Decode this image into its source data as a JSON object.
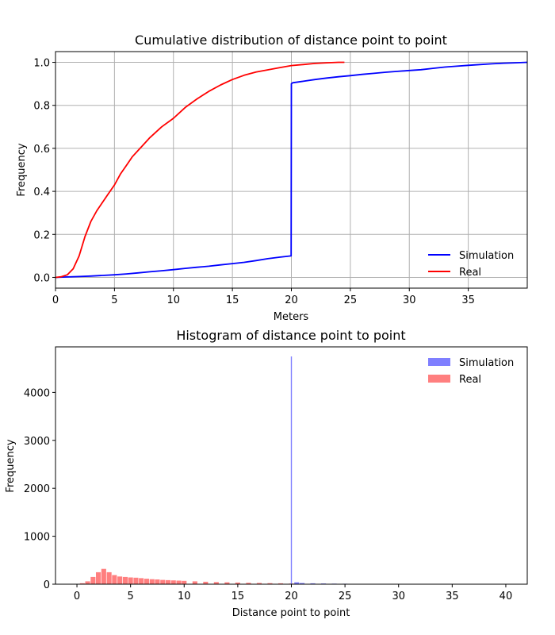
{
  "chart_data": [
    {
      "type": "line",
      "title": "Cumulative distribution of distance point to point",
      "xlabel": "Meters",
      "ylabel": "Frequency",
      "xlim": [
        0,
        40
      ],
      "ylim": [
        -0.05,
        1.05
      ],
      "xticks": [
        0,
        5,
        10,
        15,
        20,
        25,
        30,
        35
      ],
      "yticks": [
        0.0,
        0.2,
        0.4,
        0.6,
        0.8,
        1.0
      ],
      "xtick_labels": [
        "0",
        "5",
        "10",
        "15",
        "20",
        "25",
        "30",
        "35"
      ],
      "ytick_labels": [
        "0.0",
        "0.2",
        "0.4",
        "0.6",
        "0.8",
        "1.0"
      ],
      "grid": true,
      "legend_position": "bottom-right",
      "series": [
        {
          "name": "Simulation",
          "color": "#0000ff",
          "x": [
            0,
            1,
            2,
            3,
            4,
            5,
            6,
            7,
            8,
            9,
            10,
            11,
            12,
            13,
            14,
            15,
            16,
            17,
            18,
            19,
            19.98,
            20.0,
            20.1,
            21,
            22,
            23,
            24,
            25,
            26,
            27,
            28,
            29,
            30,
            31,
            32,
            33,
            34,
            35,
            36,
            37,
            38,
            39,
            40
          ],
          "y": [
            0.0,
            0.002,
            0.004,
            0.006,
            0.009,
            0.012,
            0.016,
            0.021,
            0.026,
            0.031,
            0.036,
            0.042,
            0.047,
            0.052,
            0.058,
            0.064,
            0.07,
            0.078,
            0.087,
            0.094,
            0.1,
            0.9,
            0.905,
            0.912,
            0.92,
            0.927,
            0.933,
            0.938,
            0.944,
            0.949,
            0.954,
            0.958,
            0.962,
            0.966,
            0.972,
            0.978,
            0.982,
            0.986,
            0.99,
            0.993,
            0.996,
            0.998,
            1.0
          ]
        },
        {
          "name": "Real",
          "color": "#ff0000",
          "x": [
            0,
            0.5,
            1.0,
            1.5,
            2.0,
            2.5,
            3.0,
            3.5,
            4.0,
            4.5,
            5.0,
            5.5,
            6.0,
            6.5,
            7.0,
            7.5,
            8.0,
            9.0,
            10.0,
            11.0,
            12.0,
            13.0,
            14.0,
            15.0,
            16.0,
            17.0,
            18.0,
            19.0,
            20.0,
            21.0,
            22.0,
            23.0,
            24.0,
            24.5
          ],
          "y": [
            0.0,
            0.003,
            0.012,
            0.04,
            0.1,
            0.19,
            0.26,
            0.31,
            0.35,
            0.39,
            0.43,
            0.48,
            0.52,
            0.56,
            0.59,
            0.62,
            0.65,
            0.7,
            0.74,
            0.79,
            0.83,
            0.865,
            0.895,
            0.92,
            0.94,
            0.955,
            0.965,
            0.975,
            0.985,
            0.99,
            0.995,
            0.998,
            1.0,
            1.0
          ]
        }
      ]
    },
    {
      "type": "bar",
      "title": "Histogram of distance point to point",
      "xlabel": "Distance point to point",
      "ylabel": "Frequency",
      "xlim": [
        -2,
        42
      ],
      "ylim": [
        0,
        4950
      ],
      "xticks": [
        0,
        5,
        10,
        15,
        20,
        25,
        30,
        35,
        40
      ],
      "yticks": [
        0,
        1000,
        2000,
        3000,
        4000
      ],
      "xtick_labels": [
        "0",
        "5",
        "10",
        "15",
        "20",
        "25",
        "30",
        "35",
        "40"
      ],
      "ytick_labels": [
        "0",
        "1000",
        "2000",
        "3000",
        "4000"
      ],
      "grid": false,
      "legend_position": "top-right",
      "series": [
        {
          "name": "Simulation",
          "color": "#7f7fff",
          "x": [
            20.0,
            20.5,
            21,
            22,
            23,
            24,
            25,
            26,
            27,
            28,
            29,
            30,
            32,
            34,
            36,
            38
          ],
          "values": [
            4750,
            40,
            25,
            18,
            15,
            12,
            10,
            9,
            8,
            7,
            6,
            6,
            5,
            4,
            3,
            2
          ]
        },
        {
          "name": "Real",
          "color": "#ff7f7f",
          "x": [
            0.5,
            1.0,
            1.5,
            2.0,
            2.5,
            3.0,
            3.5,
            4.0,
            4.5,
            5.0,
            5.5,
            6.0,
            6.5,
            7.0,
            7.5,
            8.0,
            8.5,
            9.0,
            9.5,
            10.0,
            11.0,
            12.0,
            13.0,
            14.0,
            15.0,
            16.0,
            17.0,
            18.0,
            19.0,
            20.0,
            21.0,
            22.0,
            23.0,
            24.0
          ],
          "values": [
            20,
            60,
            150,
            250,
            320,
            250,
            190,
            160,
            150,
            140,
            135,
            125,
            115,
            105,
            100,
            90,
            85,
            80,
            75,
            70,
            60,
            52,
            45,
            40,
            35,
            30,
            26,
            22,
            18,
            14,
            10,
            7,
            5,
            3
          ]
        }
      ]
    }
  ]
}
